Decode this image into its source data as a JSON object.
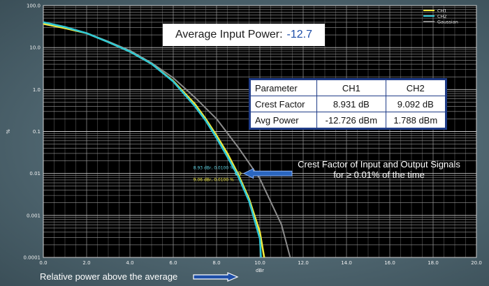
{
  "title": {
    "label": "Average Input Power:",
    "value": "-12.7"
  },
  "legend": [
    {
      "name": "CH1",
      "color": "#f2ea3a"
    },
    {
      "name": "CH2",
      "color": "#2fc7d6"
    },
    {
      "name": "Gaussian",
      "color": "#8c8c8c"
    }
  ],
  "table": {
    "headers": [
      "Parameter",
      "CH1",
      "CH2"
    ],
    "rows": [
      [
        "Crest Factor",
        "8.931 dB",
        "9.092 dB"
      ],
      [
        "Avg Power",
        "-12.726 dBm",
        "1.788 dBm"
      ]
    ]
  },
  "annotation": {
    "line1": "Crest Factor of Input and Output Signals",
    "line2": "for ≥ 0.01% of the time"
  },
  "markers": [
    {
      "label": "8.93 dBr, 0.0100 %",
      "color": "#5fd5e6"
    },
    {
      "label": "9.06 dBr, 0.0100 %",
      "color": "#f2ea3a"
    }
  ],
  "footer": {
    "label": "Relative power above the average"
  },
  "chart_data": {
    "type": "line",
    "xlabel": "dBr",
    "ylabel": "%",
    "xlim": [
      0,
      20
    ],
    "ylim": [
      0.0001,
      100
    ],
    "yscale": "log",
    "grid": true,
    "legend_position": "top-right",
    "x_ticks": [
      "0.0",
      "2.0",
      "4.0",
      "6.0",
      "8.0",
      "10.0",
      "12.0",
      "14.0",
      "16.0",
      "18.0",
      "20.0"
    ],
    "y_ticks": [
      {
        "value": 100,
        "label": "100.0"
      },
      {
        "value": 10,
        "label": "10.0"
      },
      {
        "value": 1,
        "label": "1.0"
      },
      {
        "value": 0.1,
        "label": "0.1"
      },
      {
        "value": 0.01,
        "label": "0.01"
      },
      {
        "value": 0.001,
        "label": "0.001"
      },
      {
        "value": 0.0001,
        "label": "0.0001"
      }
    ],
    "series": [
      {
        "name": "CH1",
        "color": "#f2ea3a",
        "x": [
          0,
          1,
          2,
          3,
          4,
          5,
          6,
          7,
          7.5,
          8,
          8.5,
          9,
          9.5,
          10,
          10.2
        ],
        "y": [
          37,
          29,
          22,
          13.5,
          8,
          4.1,
          1.6,
          0.45,
          0.2,
          0.08,
          0.03,
          0.0095,
          0.0025,
          0.0004,
          0.0001
        ]
      },
      {
        "name": "CH2",
        "color": "#2fc7d6",
        "x": [
          0,
          1,
          2,
          3,
          4,
          5,
          6,
          7,
          7.5,
          8,
          8.5,
          9,
          9.5,
          10,
          10.05
        ],
        "y": [
          40,
          31,
          22,
          13.5,
          8,
          4.1,
          1.55,
          0.4,
          0.18,
          0.07,
          0.025,
          0.0085,
          0.0022,
          0.00028,
          0.0001
        ]
      },
      {
        "name": "Gaussian",
        "color": "#8c8c8c",
        "x": [
          0,
          1,
          2,
          3,
          4,
          5,
          6,
          7,
          8,
          9,
          10,
          11,
          11.4
        ],
        "y": [
          36,
          29,
          22,
          14,
          8.5,
          4.3,
          1.9,
          0.65,
          0.2,
          0.042,
          0.0075,
          0.0006,
          0.0001
        ]
      }
    ]
  }
}
